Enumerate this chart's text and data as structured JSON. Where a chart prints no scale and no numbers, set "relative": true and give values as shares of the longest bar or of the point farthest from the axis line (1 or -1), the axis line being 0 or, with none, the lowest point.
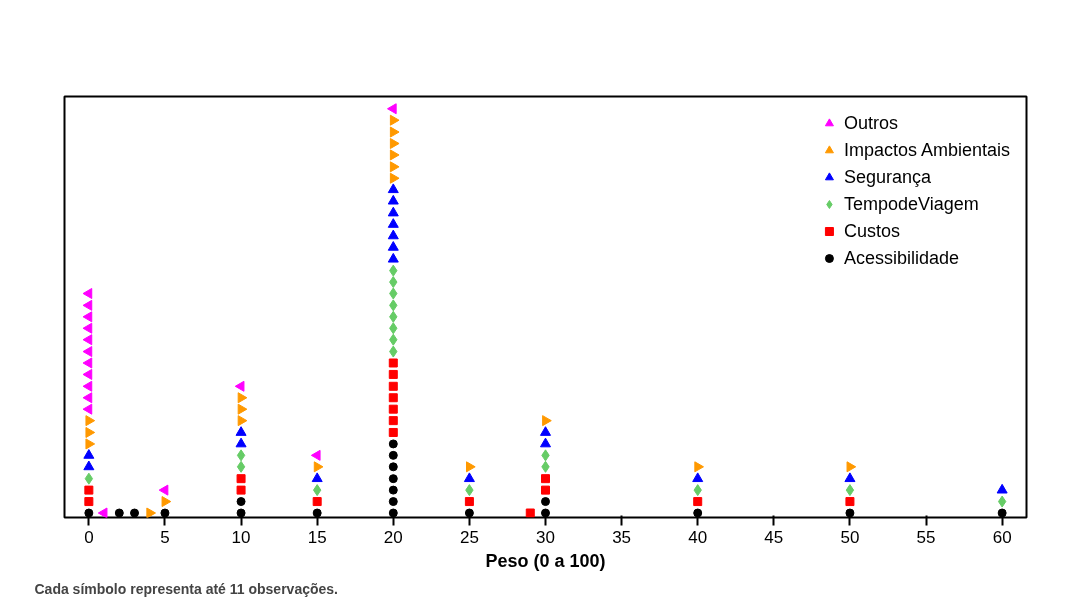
{
  "chart_data": {
    "type": "scatter",
    "relative": true,
    "xlabel": "Peso (0 a 100)",
    "xlim": [
      -1.6,
      61.6
    ],
    "xticks": [
      0,
      5,
      10,
      15,
      20,
      25,
      30,
      35,
      40,
      45,
      50,
      55,
      60
    ],
    "tick_labels": "x",
    "grid": false,
    "legend": "top right",
    "annotations": [
      "Cada símbolo representa até 11 observações."
    ],
    "series": [
      {
        "name": "Outros",
        "color": "#ff00ff",
        "marker": "triangle_left",
        "x": [
          0,
          0,
          0,
          0,
          0,
          0,
          0,
          0,
          0,
          0,
          0,
          1,
          5,
          10,
          15,
          20
        ],
        "values": [
          0.265,
          0.293,
          0.321,
          0.35,
          0.378,
          0.406,
          0.435,
          0.463,
          0.491,
          0.519,
          0.548,
          0.011,
          0.067,
          0.321,
          0.152,
          1
        ]
      },
      {
        "name": "Impactos Ambientais",
        "color": "#ff9900",
        "marker": "triangle_right",
        "x": [
          0,
          0,
          0,
          4,
          5,
          10,
          10,
          10,
          15,
          20,
          20,
          20,
          20,
          20,
          20,
          25,
          30,
          40,
          50
        ],
        "values": [
          0.18,
          0.208,
          0.237,
          0.011,
          0.039,
          0.237,
          0.265,
          0.293,
          0.124,
          0.83,
          0.858,
          0.887,
          0.915,
          0.943,
          0.972,
          0.124,
          0.237,
          0.124,
          0.124
        ]
      },
      {
        "name": "Segurança",
        "color": "#0000ff",
        "marker": "triangle",
        "x": [
          0,
          0,
          10,
          10,
          15,
          20,
          20,
          20,
          20,
          20,
          20,
          20,
          25,
          30,
          30,
          40,
          50,
          60
        ],
        "values": [
          0.124,
          0.152,
          0.18,
          0.208,
          0.095,
          0.632,
          0.661,
          0.689,
          0.717,
          0.745,
          0.774,
          0.802,
          0.095,
          0.18,
          0.208,
          0.095,
          0.095,
          0.067
        ]
      },
      {
        "name": "TempodeViagem",
        "color": "#66cc66",
        "marker": "diamond",
        "x": [
          0,
          10,
          10,
          15,
          20,
          20,
          20,
          20,
          20,
          20,
          20,
          20,
          25,
          30,
          30,
          40,
          50,
          60
        ],
        "values": [
          0.095,
          0.124,
          0.152,
          0.067,
          0.406,
          0.435,
          0.463,
          0.491,
          0.519,
          0.548,
          0.576,
          0.604,
          0.067,
          0.124,
          0.152,
          0.067,
          0.067,
          0.039
        ]
      },
      {
        "name": "Custos",
        "color": "#ff0000",
        "marker": "square",
        "x": [
          0,
          0,
          10,
          10,
          15,
          20,
          20,
          20,
          20,
          20,
          20,
          20,
          25,
          29,
          30,
          30,
          40,
          50
        ],
        "values": [
          0.039,
          0.067,
          0.067,
          0.095,
          0.039,
          0.208,
          0.237,
          0.265,
          0.293,
          0.321,
          0.35,
          0.378,
          0.039,
          0.011,
          0.067,
          0.095,
          0.039,
          0.039
        ]
      },
      {
        "name": "Acessibilidade",
        "color": "#000000",
        "marker": "circle",
        "x": [
          0,
          2,
          3,
          5,
          10,
          10,
          15,
          20,
          20,
          20,
          20,
          20,
          20,
          20,
          25,
          30,
          30,
          40,
          50,
          60
        ],
        "values": [
          0.011,
          0.011,
          0.011,
          0.011,
          0.011,
          0.039,
          0.011,
          0.011,
          0.039,
          0.067,
          0.095,
          0.124,
          0.152,
          0.18,
          0.011,
          0.011,
          0.039,
          0.011,
          0.011,
          0.011
        ]
      }
    ]
  }
}
